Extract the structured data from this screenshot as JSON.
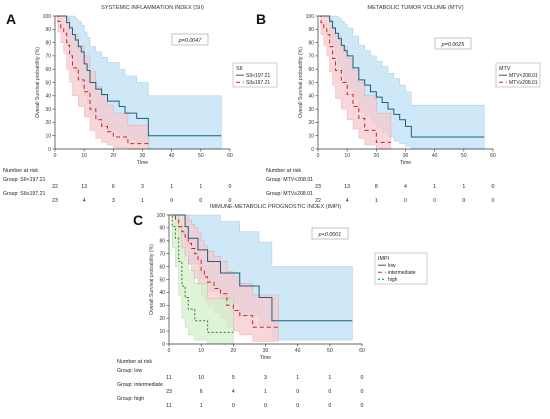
{
  "chart_data": [
    {
      "panel_letter": "A",
      "type": "line",
      "title": "SYSTEMIC INFLAMMATION INDEX (SII)",
      "ylabel": "Overall Survival probability (%)",
      "xlabel": "Time",
      "xlim": [
        0,
        60
      ],
      "ylim": [
        0,
        100
      ],
      "xticks": [
        0,
        10,
        20,
        30,
        40,
        50,
        60
      ],
      "yticks": [
        0,
        10,
        20,
        30,
        40,
        50,
        60,
        70,
        80,
        90,
        100
      ],
      "pvalue": "p=0.0047",
      "legend_title": "SII",
      "legend_position": "right",
      "series": [
        {
          "name": "SII<197.21",
          "color": "#1f5f7a",
          "band": "#bfe0f5",
          "dash": "",
          "x": [
            0,
            3,
            4,
            5,
            6,
            7,
            8,
            9,
            10,
            11,
            12,
            14,
            16,
            18,
            22,
            24,
            28,
            32,
            57
          ],
          "y": [
            100,
            100,
            95,
            91,
            86,
            82,
            77,
            73,
            64,
            59,
            50,
            45,
            41,
            36,
            32,
            27,
            23,
            10,
            10
          ],
          "upper": [
            100,
            100,
            100,
            100,
            100,
            98,
            96,
            93,
            88,
            84,
            77,
            73,
            69,
            65,
            60,
            55,
            50,
            40,
            40
          ],
          "lower": [
            100,
            100,
            80,
            72,
            65,
            58,
            52,
            47,
            40,
            35,
            26,
            22,
            18,
            14,
            11,
            7,
            5,
            0,
            0
          ]
        },
        {
          "name": "SII≥197.21",
          "color": "#c62828",
          "band": "#f6c9cd",
          "dash": "4,3",
          "x": [
            0,
            1,
            2,
            3,
            4,
            5,
            6,
            8,
            10,
            12,
            14,
            16,
            18,
            20,
            25,
            32
          ],
          "y": [
            100,
            96,
            91,
            87,
            78,
            70,
            61,
            52,
            43,
            30,
            22,
            17,
            13,
            9,
            4,
            4
          ],
          "upper": [
            100,
            100,
            100,
            100,
            98,
            92,
            86,
            78,
            70,
            58,
            47,
            40,
            33,
            27,
            18,
            18
          ],
          "lower": [
            100,
            88,
            80,
            72,
            60,
            50,
            40,
            32,
            24,
            14,
            8,
            5,
            3,
            1,
            0,
            0
          ]
        }
      ],
      "risk_table": {
        "title": "Number at risk",
        "times": [
          0,
          10,
          20,
          30,
          40,
          50,
          60
        ],
        "rows": [
          {
            "label": "Group: SII<197.21",
            "counts": [
              22,
              13,
              6,
              3,
              1,
              1,
              0
            ]
          },
          {
            "label": "Group: SII≥197.21",
            "counts": [
              23,
              4,
              3,
              1,
              0,
              0,
              0
            ]
          }
        ]
      }
    },
    {
      "panel_letter": "B",
      "type": "line",
      "title": "METABOLIC TUMOR VOLUME (MTV)",
      "ylabel": "Overall Survival probability (%)",
      "xlabel": "Time",
      "xlim": [
        0,
        60
      ],
      "ylim": [
        0,
        100
      ],
      "xticks": [
        0,
        10,
        20,
        30,
        40,
        50,
        60
      ],
      "yticks": [
        0,
        10,
        20,
        30,
        40,
        50,
        60,
        70,
        80,
        90,
        100
      ],
      "pvalue": "p=0.0025",
      "legend_title": "MTV",
      "legend_position": "right",
      "series": [
        {
          "name": "MTV<208.01",
          "color": "#1f5f7a",
          "band": "#bfe0f5",
          "dash": "",
          "x": [
            0,
            3,
            4,
            5,
            6,
            7,
            8,
            9,
            10,
            12,
            14,
            16,
            18,
            20,
            22,
            24,
            26,
            28,
            30,
            32,
            57
          ],
          "y": [
            100,
            100,
            96,
            91,
            87,
            83,
            78,
            74,
            70,
            61,
            52,
            48,
            43,
            39,
            35,
            30,
            26,
            22,
            17,
            9,
            9
          ],
          "upper": [
            100,
            100,
            100,
            100,
            100,
            98,
            96,
            94,
            91,
            85,
            78,
            74,
            70,
            66,
            62,
            57,
            53,
            48,
            43,
            33,
            33
          ],
          "lower": [
            100,
            100,
            84,
            76,
            69,
            63,
            57,
            51,
            46,
            38,
            29,
            25,
            20,
            16,
            12,
            9,
            6,
            4,
            2,
            0,
            0
          ]
        },
        {
          "name": "MTV≥208.01",
          "color": "#c62828",
          "band": "#f6c9cd",
          "dash": "4,3",
          "x": [
            0,
            1,
            2,
            3,
            4,
            5,
            6,
            8,
            10,
            12,
            14,
            16,
            20,
            25
          ],
          "y": [
            100,
            95,
            91,
            86,
            77,
            68,
            59,
            50,
            41,
            32,
            23,
            14,
            5,
            5
          ],
          "upper": [
            100,
            100,
            100,
            100,
            97,
            91,
            85,
            77,
            68,
            59,
            50,
            40,
            27,
            27
          ],
          "lower": [
            100,
            86,
            78,
            70,
            58,
            48,
            38,
            30,
            22,
            15,
            8,
            3,
            0,
            0
          ]
        }
      ],
      "risk_table": {
        "title": "Number at risk",
        "times": [
          0,
          10,
          20,
          30,
          40,
          50,
          60
        ],
        "rows": [
          {
            "label": "Group: MTV<208.01",
            "counts": [
              23,
              13,
              8,
              4,
              1,
              1,
              0
            ]
          },
          {
            "label": "Group: MTV≥208.01",
            "counts": [
              22,
              4,
              1,
              0,
              0,
              0,
              0
            ]
          }
        ]
      }
    },
    {
      "panel_letter": "C",
      "type": "line",
      "title": "IMMUNE-METABOLIC PROGNOSTIC INDEX (IMPI)",
      "ylabel": "Overall Survival probability (%)",
      "xlabel": "Time",
      "xlim": [
        0,
        60
      ],
      "ylim": [
        0,
        100
      ],
      "xticks": [
        0,
        10,
        20,
        30,
        40,
        50,
        60
      ],
      "yticks": [
        0,
        10,
        20,
        30,
        40,
        50,
        60,
        70,
        80,
        90,
        100
      ],
      "pvalue": "p<0.0001",
      "legend_title": "IMPI",
      "legend_position": "right",
      "series": [
        {
          "name": "low",
          "color": "#1f5f7a",
          "band": "#bfe0f5",
          "dash": "",
          "x": [
            0,
            4,
            5,
            6,
            9,
            12,
            16,
            22,
            28,
            32,
            57
          ],
          "y": [
            100,
            100,
            91,
            82,
            73,
            64,
            55,
            45,
            36,
            18,
            18
          ],
          "upper": [
            100,
            100,
            100,
            100,
            100,
            100,
            95,
            87,
            79,
            60,
            60
          ],
          "lower": [
            100,
            100,
            75,
            62,
            51,
            41,
            31,
            22,
            14,
            3,
            3
          ]
        },
        {
          "name": "intermediate",
          "color": "#c62828",
          "band": "#f6c9cd",
          "dash": "4,3",
          "x": [
            0,
            2,
            3,
            4,
            5,
            6,
            7,
            8,
            9,
            10,
            11,
            12,
            14,
            16,
            18,
            20,
            22,
            26,
            34
          ],
          "y": [
            100,
            96,
            91,
            87,
            83,
            78,
            74,
            70,
            65,
            57,
            52,
            48,
            43,
            39,
            30,
            26,
            22,
            13,
            13
          ],
          "upper": [
            100,
            100,
            100,
            100,
            100,
            96,
            93,
            90,
            86,
            80,
            76,
            72,
            68,
            64,
            56,
            52,
            47,
            38,
            38
          ],
          "lower": [
            100,
            88,
            80,
            74,
            68,
            62,
            57,
            51,
            46,
            38,
            33,
            29,
            24,
            20,
            13,
            10,
            7,
            2,
            2
          ]
        },
        {
          "name": "high",
          "color": "#2e7d32",
          "band": "#d3efc9",
          "dash": "2,2",
          "x": [
            0,
            1,
            2,
            3,
            4,
            5,
            6,
            8,
            12,
            20
          ],
          "y": [
            100,
            91,
            82,
            64,
            45,
            36,
            27,
            18,
            9,
            9
          ],
          "upper": [
            100,
            100,
            100,
            90,
            75,
            66,
            57,
            47,
            35,
            35
          ],
          "lower": [
            100,
            75,
            60,
            38,
            20,
            13,
            7,
            3,
            0,
            0
          ]
        }
      ],
      "risk_table": {
        "title": "Number at risk",
        "times": [
          0,
          10,
          20,
          30,
          40,
          50,
          60
        ],
        "rows": [
          {
            "label": "Group: low",
            "counts": [
              11,
              10,
              5,
              3,
              1,
              1,
              0
            ]
          },
          {
            "label": "Group: intermediate",
            "counts": [
              23,
              6,
              4,
              1,
              0,
              0,
              0
            ]
          },
          {
            "label": "Group: high",
            "counts": [
              11,
              1,
              0,
              0,
              0,
              0,
              0
            ]
          }
        ]
      }
    }
  ]
}
